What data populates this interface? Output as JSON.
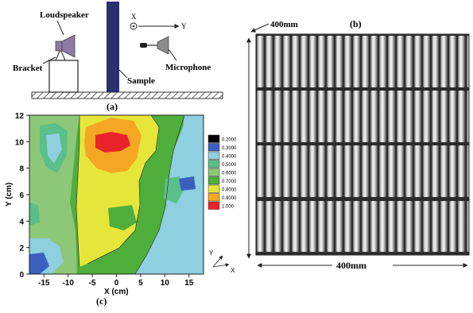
{
  "panel_a": {
    "caption": "(a)",
    "labels": {
      "loudspeaker": "Loudspeaker",
      "bracket": "Bracket",
      "sample": "Sample",
      "microphone": "Microphone",
      "axis_x": "X",
      "axis_y": "Y"
    },
    "colors": {
      "speaker": "#8a7aa6",
      "sample": "#2a2f6e",
      "microphone": "#8c8c8c"
    }
  },
  "panel_b": {
    "caption": "(b)",
    "dim_top": "400mm",
    "dim_bottom": "400mm"
  },
  "panel_c": {
    "caption": "(c)",
    "x_axis_label": "X (cm)",
    "y_axis_label": "Y (cm)",
    "x_ticks": [
      "-15",
      "-10",
      "-5",
      "0",
      "5",
      "10",
      "15"
    ],
    "y_ticks": [
      "0",
      "2",
      "4",
      "6",
      "8",
      "10",
      "12"
    ],
    "corner_axes": {
      "y": "Y",
      "x": "X"
    },
    "legend": [
      {
        "label": "0.2000",
        "color": "#000000"
      },
      {
        "label": "0.3000",
        "color": "#3a5fbf"
      },
      {
        "label": "0.4000",
        "color": "#8ecfe0"
      },
      {
        "label": "0.5000",
        "color": "#5abf8a"
      },
      {
        "label": "0.6000",
        "color": "#8cc878"
      },
      {
        "label": "0.7000",
        "color": "#4fae3c"
      },
      {
        "label": "0.8000",
        "color": "#e6e63a"
      },
      {
        "label": "0.9000",
        "color": "#f5a623"
      },
      {
        "label": "1.000",
        "color": "#e8242a"
      }
    ]
  }
}
